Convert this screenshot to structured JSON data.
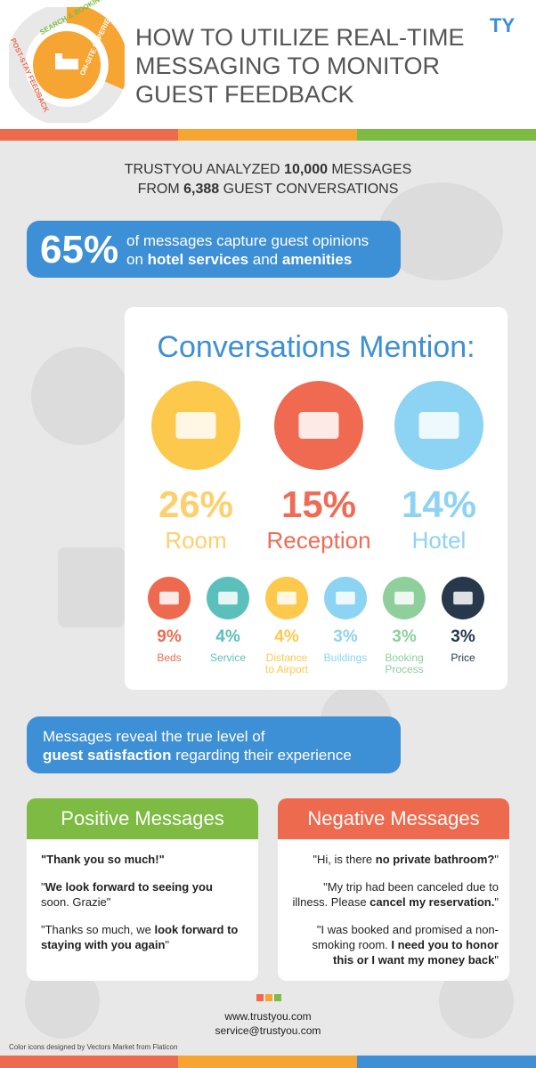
{
  "header": {
    "title_lines": [
      "HOW TO UTILIZE REAL-TIME",
      "MESSAGING TO MONITOR",
      "GUEST FEEDBACK"
    ],
    "cycle_labels": [
      "SEARCH & BOOKING",
      "ON-SITE EXPERIENCE",
      "POST-STAY FEEDBACK"
    ],
    "logo": "TY"
  },
  "intro": {
    "lines": [
      [
        {
          "text": "TRUSTYOU ANALYZED ",
          "bold": false
        },
        {
          "text": "10,000",
          "bold": true
        },
        {
          "text": " MESSAGES",
          "bold": false
        }
      ],
      [
        {
          "text": "FROM ",
          "bold": false
        },
        {
          "text": "6,388",
          "bold": true
        },
        {
          "text": " GUEST CONVERSATIONS",
          "bold": false
        }
      ]
    ]
  },
  "stat": {
    "number": "65%",
    "lines": [
      [
        {
          "text": "of messages capture guest opinions",
          "bold": false
        }
      ],
      [
        {
          "text": "on ",
          "bold": false
        },
        {
          "text": "hotel services",
          "bold": true
        },
        {
          "text": " and ",
          "bold": false
        },
        {
          "text": "amenities",
          "bold": true
        }
      ]
    ]
  },
  "mentions": {
    "title": "Conversations Mention:",
    "main": [
      {
        "value": "26%",
        "label": "Room",
        "color": "#fcc94d",
        "text_color": "#fdd06e"
      },
      {
        "value": "15%",
        "label": "Reception",
        "color": "#ef6a50",
        "text_color": "#ef6b55"
      },
      {
        "value": "14%",
        "label": "Hotel",
        "color": "#8dd3f3",
        "text_color": "#8fd3f4"
      }
    ],
    "minor": [
      {
        "value": "9%",
        "label": "Beds",
        "color": "#ee6a4f"
      },
      {
        "value": "4%",
        "label": "Service",
        "color": "#5bbfbc"
      },
      {
        "value": "4%",
        "label": "Distance to Airport",
        "color": "#fcc94d"
      },
      {
        "value": "3%",
        "label": "Buildings",
        "color": "#8dd3f3"
      },
      {
        "value": "3%",
        "label": "Booking Process",
        "color": "#8ecf9c"
      },
      {
        "value": "3%",
        "label": "Price",
        "color": "#27384c"
      }
    ]
  },
  "satisfaction": {
    "lines": [
      [
        {
          "text": "Messages reveal the true level of",
          "bold": false
        }
      ],
      [
        {
          "text": "guest satisfaction",
          "bold": true
        },
        {
          "text": " regarding their experience",
          "bold": false
        }
      ]
    ]
  },
  "positive": {
    "title": "Positive Messages",
    "quotes": [
      [
        {
          "text": "\"Thank you so much!\"",
          "bold": true
        }
      ],
      [
        {
          "text": "\"",
          "bold": false
        },
        {
          "text": "We look forward to seeing you",
          "bold": true
        },
        {
          "text": " soon. Grazie\"",
          "bold": false
        }
      ],
      [
        {
          "text": "\"Thanks so much, we ",
          "bold": false
        },
        {
          "text": "look forward to staying with you again",
          "bold": true
        },
        {
          "text": "\"",
          "bold": false
        }
      ]
    ]
  },
  "negative": {
    "title": "Negative Messages",
    "quotes": [
      [
        {
          "text": "\"Hi, is there ",
          "bold": false
        },
        {
          "text": "no private bathroom?",
          "bold": true
        },
        {
          "text": "\"",
          "bold": false
        }
      ],
      [
        {
          "text": "\"My trip had been canceled due to illness. Please ",
          "bold": false
        },
        {
          "text": "cancel my reservation.",
          "bold": true
        },
        {
          "text": "\"",
          "bold": false
        }
      ],
      [
        {
          "text": "\"I was booked and promised a non-smoking room. ",
          "bold": false
        },
        {
          "text": "I need you to honor this or I want my money back",
          "bold": true
        },
        {
          "text": "\"",
          "bold": false
        }
      ]
    ]
  },
  "footer": {
    "website": "www.trustyou.com",
    "email": "service@trustyou.com",
    "credit": "Color icons designed by Vectors Market from Flaticon"
  }
}
